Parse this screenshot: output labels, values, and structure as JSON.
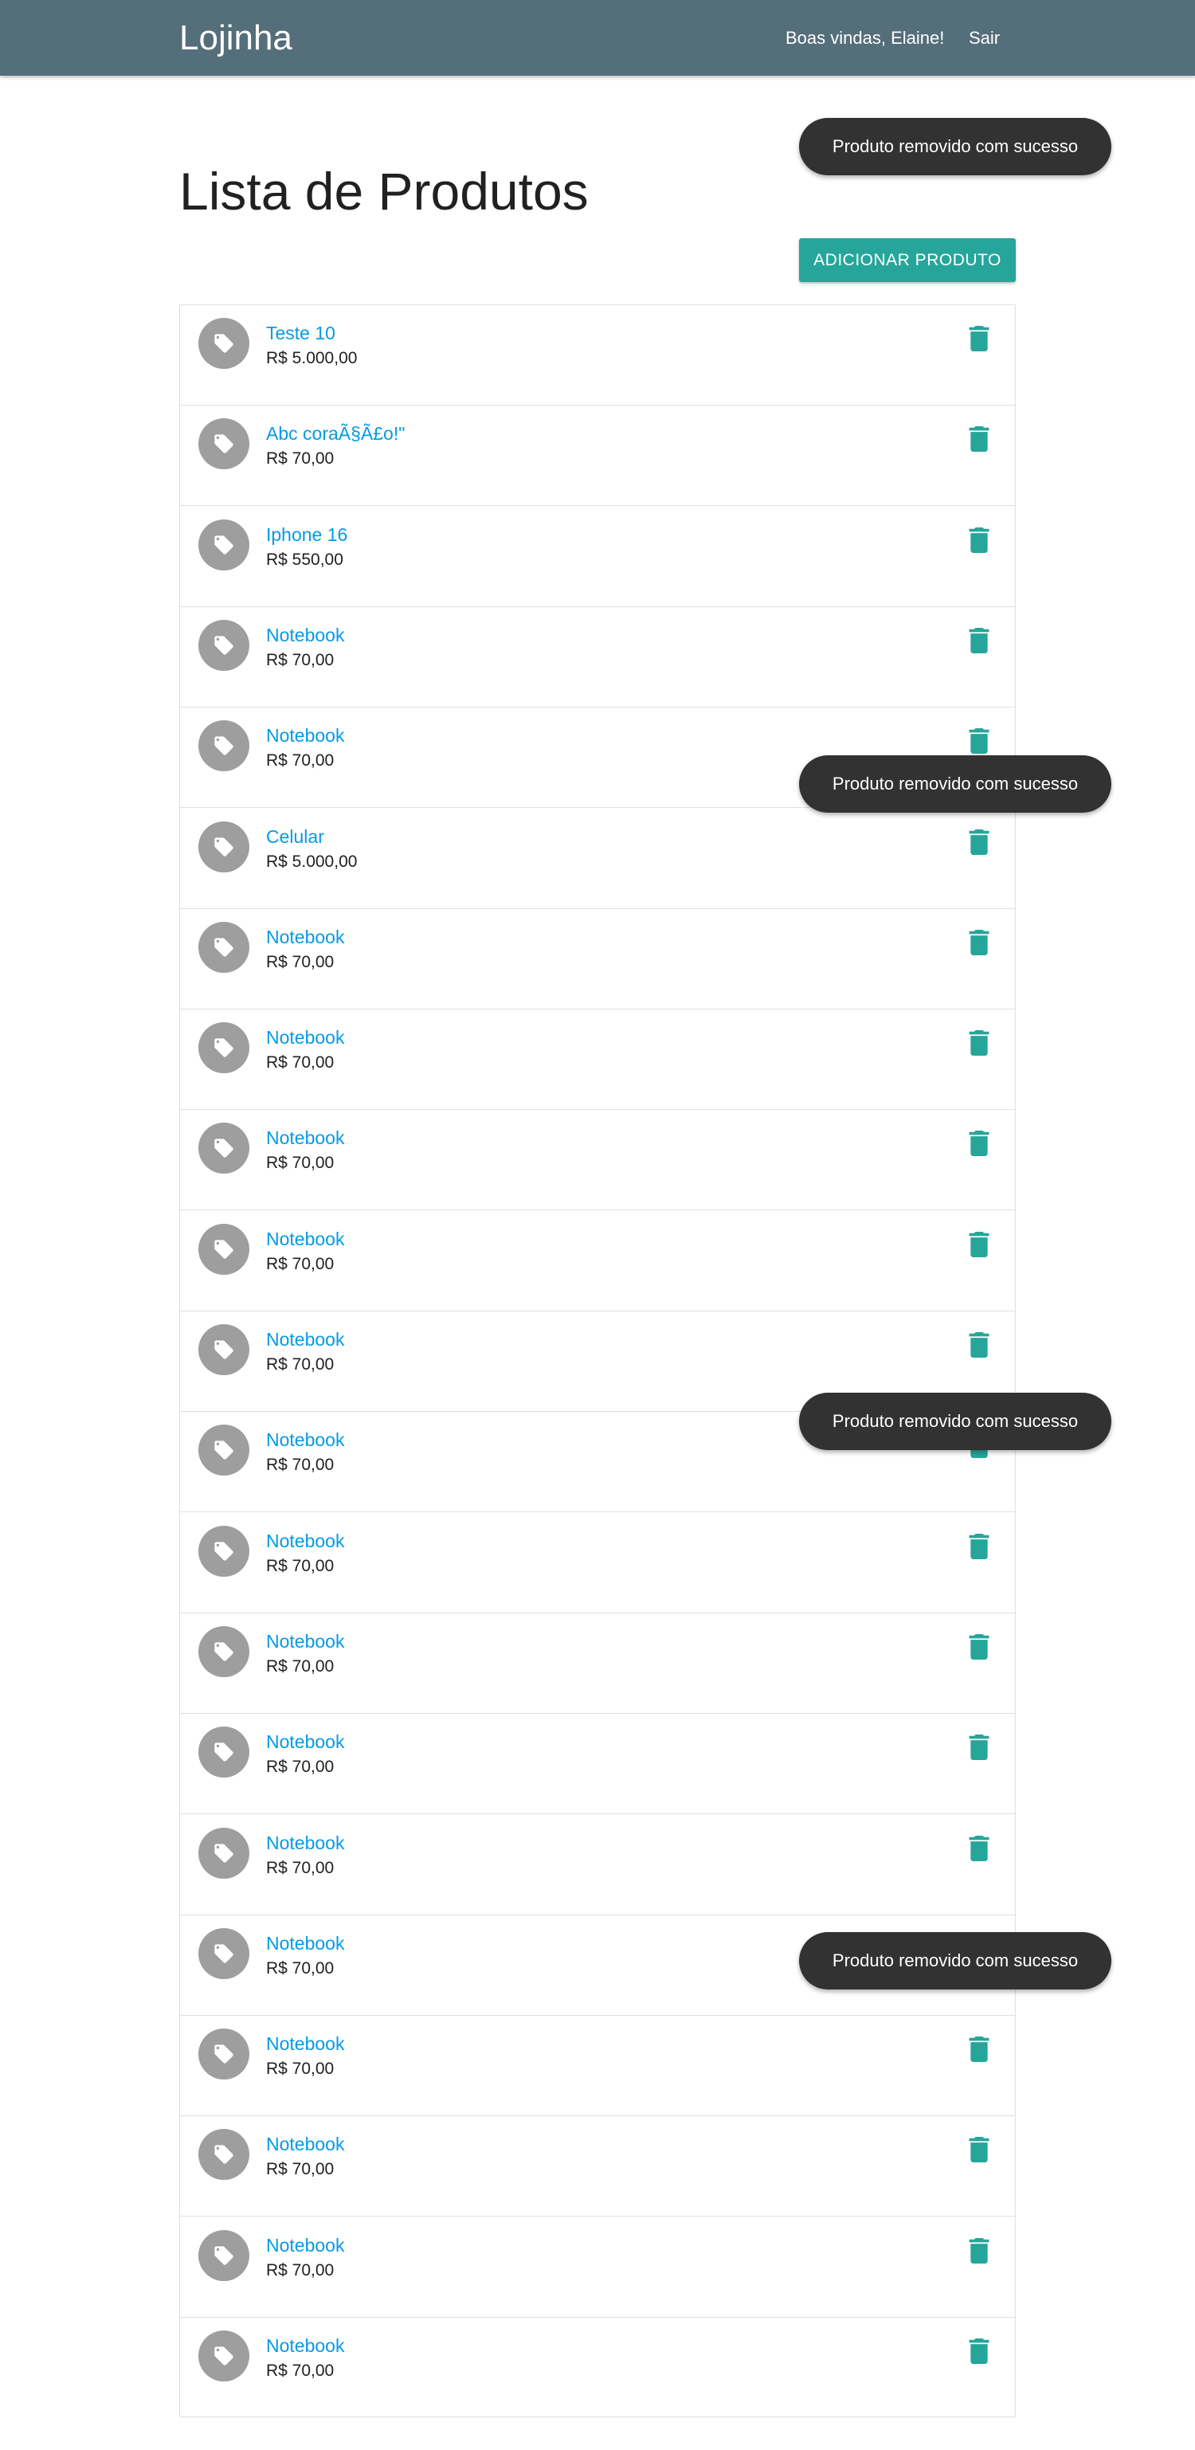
{
  "navbar": {
    "brand": "Lojinha",
    "welcome": "Boas vindas, Elaine!",
    "logout": "Sair"
  },
  "page": {
    "title": "Lista de Produtos",
    "add_button": "ADICIONAR PRODUTO"
  },
  "products": [
    {
      "name": "Teste 10",
      "price": "R$ 5.000,00"
    },
    {
      "name": "Abc coraÃ§Ã£o!\"",
      "price": "R$ 70,00"
    },
    {
      "name": "Iphone 16",
      "price": "R$ 550,00"
    },
    {
      "name": "Notebook",
      "price": "R$ 70,00"
    },
    {
      "name": "Notebook",
      "price": "R$ 70,00"
    },
    {
      "name": "Celular",
      "price": "R$ 5.000,00"
    },
    {
      "name": "Notebook",
      "price": "R$ 70,00"
    },
    {
      "name": "Notebook",
      "price": "R$ 70,00"
    },
    {
      "name": "Notebook",
      "price": "R$ 70,00"
    },
    {
      "name": "Notebook",
      "price": "R$ 70,00"
    },
    {
      "name": "Notebook",
      "price": "R$ 70,00"
    },
    {
      "name": "Notebook",
      "price": "R$ 70,00"
    },
    {
      "name": "Notebook",
      "price": "R$ 70,00"
    },
    {
      "name": "Notebook",
      "price": "R$ 70,00"
    },
    {
      "name": "Notebook",
      "price": "R$ 70,00"
    },
    {
      "name": "Notebook",
      "price": "R$ 70,00"
    },
    {
      "name": "Notebook",
      "price": "R$ 70,00"
    },
    {
      "name": "Notebook",
      "price": "R$ 70,00"
    },
    {
      "name": "Notebook",
      "price": "R$ 70,00"
    },
    {
      "name": "Notebook",
      "price": "R$ 70,00"
    },
    {
      "name": "Notebook",
      "price": "R$ 70,00"
    }
  ],
  "icons": {
    "avatar": "tag-icon",
    "delete": "trash-icon"
  },
  "colors": {
    "navbar": "#546e7a",
    "accent": "#26a69a",
    "link": "#039be5",
    "toast": "#323232"
  },
  "toasts": [
    "Produto removido com sucesso",
    "Produto removido com sucesso",
    "Produto removido com sucesso",
    "Produto removido com sucesso"
  ]
}
